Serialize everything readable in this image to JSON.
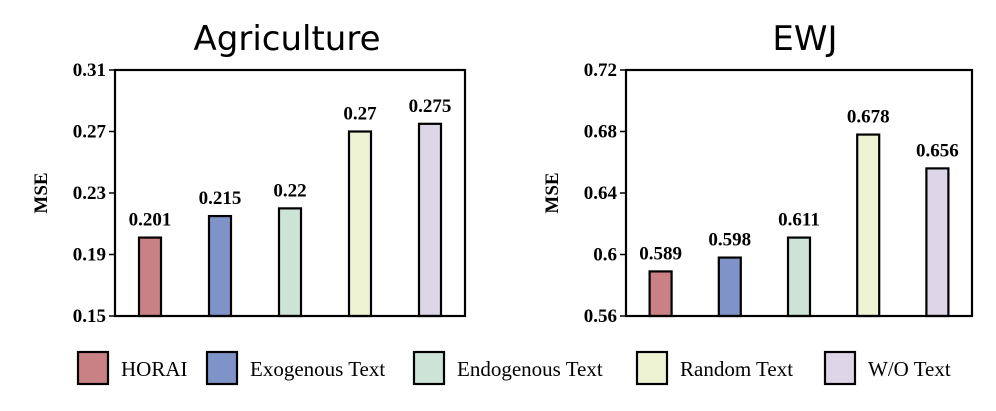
{
  "colors": [
    "#c98185",
    "#8093c9",
    "#cde3d6",
    "#eef3d4",
    "#ddd6e7"
  ],
  "legend": [
    "HORAI",
    "Exogenous Text",
    "Endogenous Text",
    "Random Text",
    "W/O Text"
  ],
  "chart_data": [
    {
      "type": "bar",
      "title": "Agriculture",
      "ylabel": "MSE",
      "ylim": [
        0.15,
        0.31
      ],
      "yticks": [
        "0.15",
        "0.19",
        "0.23",
        "0.27",
        "0.31"
      ],
      "categories": [
        "HORAI",
        "Exogenous Text",
        "Endogenous Text",
        "Random Text",
        "W/O Text"
      ],
      "values": [
        0.201,
        0.215,
        0.22,
        0.27,
        0.275
      ],
      "labels": [
        "0.201",
        "0.215",
        "0.22",
        "0.27",
        "0.275"
      ],
      "grid": false,
      "legend_position": "bottom"
    },
    {
      "type": "bar",
      "title": "EWJ",
      "ylabel": "MSE",
      "ylim": [
        0.56,
        0.72
      ],
      "yticks": [
        "0.56",
        "0.6",
        "0.64",
        "0.68",
        "0.72"
      ],
      "categories": [
        "HORAI",
        "Exogenous Text",
        "Endogenous Text",
        "Random Text",
        "W/O Text"
      ],
      "values": [
        0.589,
        0.598,
        0.611,
        0.678,
        0.656
      ],
      "labels": [
        "0.589",
        "0.598",
        "0.611",
        "0.678",
        "0.656"
      ],
      "grid": false,
      "legend_position": "bottom"
    }
  ]
}
